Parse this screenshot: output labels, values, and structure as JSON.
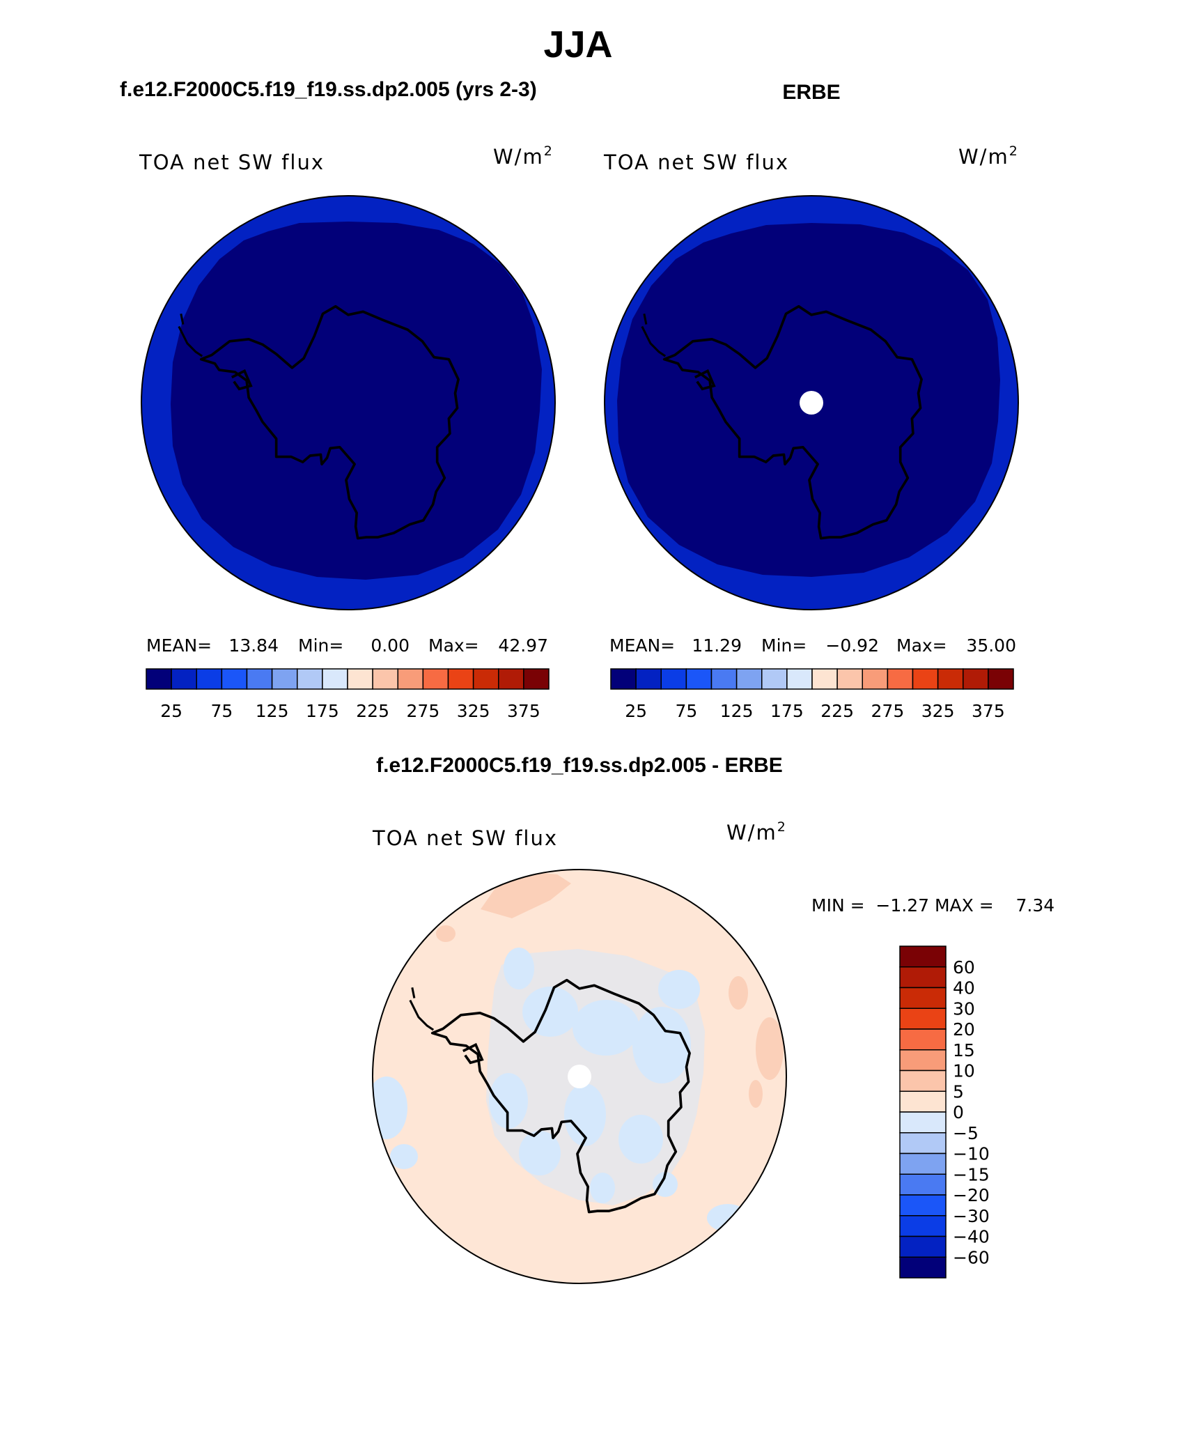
{
  "title": "JJA",
  "colors": {
    "dark_blue": "#020079",
    "ring_blue": "#0322c2",
    "light_peach": "#fee6d6",
    "light_blue": "#d5e8fc",
    "peach_patch": "#fbd0b9",
    "outline": "#000000"
  },
  "panels": [
    {
      "header": "f.e12.F2000C5.f19_f19.ss.dp2.005 (yrs 2-3)",
      "variable": "TOA net SW flux",
      "units_base": "W/m",
      "units_exp": "2",
      "stats": {
        "mean_label": "MEAN=",
        "mean": "13.84",
        "min_label": "Min=",
        "min": "0.00",
        "max_label": "Max=",
        "max": "42.97"
      },
      "field": {
        "interior_value_range": [
          0,
          25
        ],
        "ring_value_range": [
          25,
          50
        ],
        "missing_pole": false
      }
    },
    {
      "header": "ERBE",
      "variable": "TOA net SW flux",
      "units_base": "W/m",
      "units_exp": "2",
      "stats": {
        "mean_label": "MEAN=",
        "mean": "11.29",
        "min_label": "Min=",
        "min": "−0.92",
        "max_label": "Max=",
        "max": "35.00"
      },
      "field": {
        "interior_value_range": [
          0,
          25
        ],
        "ring_value_range": [
          25,
          50
        ],
        "missing_pole": true
      }
    }
  ],
  "colorbar_abs": {
    "colors": [
      "#020079",
      "#0322c2",
      "#0b3de6",
      "#1b56f8",
      "#4a7af2",
      "#7ea3f1",
      "#b1c9f6",
      "#d9e8fb",
      "#fde4d2",
      "#fbc5ab",
      "#f89c79",
      "#f76b43",
      "#ea4315",
      "#ca2b06",
      "#b01b06",
      "#7a0205"
    ],
    "tick_labels": [
      "25",
      "75",
      "125",
      "175",
      "225",
      "275",
      "325",
      "375"
    ]
  },
  "diff": {
    "header": "f.e12.F2000C5.f19_f19.ss.dp2.005 - ERBE",
    "variable": "TOA net SW flux",
    "units_base": "W/m",
    "units_exp": "2",
    "minmax_text": "MIN =  −1.27 MAX =    7.34",
    "field": {
      "background_value_range": [
        0,
        5
      ],
      "patch_low_range": [
        -5,
        0
      ],
      "patch_high_range": [
        5,
        10
      ],
      "missing_pole": true
    }
  },
  "colorbar_diff": {
    "colors": [
      "#020079",
      "#0322c2",
      "#0b3de6",
      "#1b56f8",
      "#4a7af2",
      "#7ea3f1",
      "#b1c9f6",
      "#d9e8fb",
      "#fde4d2",
      "#fbc5ab",
      "#f89c79",
      "#f76b43",
      "#ea4315",
      "#ca2b06",
      "#b01b06",
      "#7a0205"
    ],
    "tick_labels": [
      "60",
      "40",
      "30",
      "20",
      "15",
      "10",
      "5",
      "0",
      "−5",
      "−10",
      "−15",
      "−20",
      "−30",
      "−40",
      "−60"
    ]
  }
}
